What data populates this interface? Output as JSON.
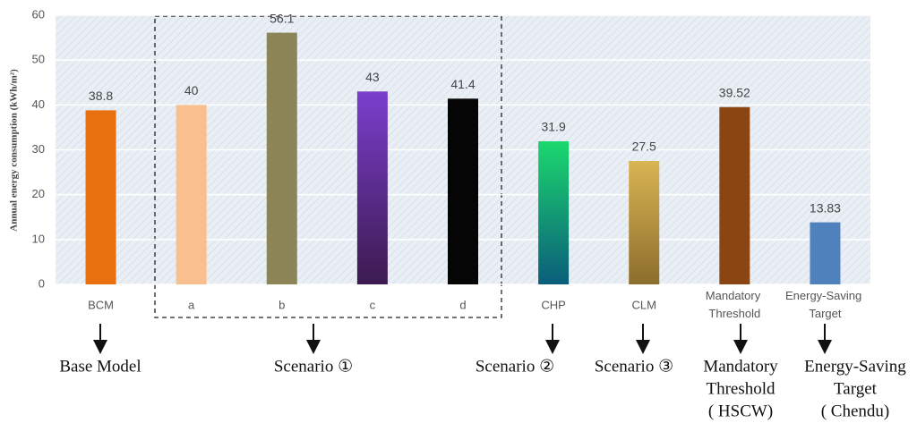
{
  "chart_data": {
    "type": "bar",
    "y_label": "Annual energy consumption (kWh/m²)",
    "categories": [
      "BCM",
      "a",
      "b",
      "c",
      "d",
      "CHP",
      "CLM",
      "Mandatory Threshold",
      "Energy-Saving Target"
    ],
    "values": [
      38.8,
      40,
      56.1,
      43,
      41.4,
      31.9,
      27.5,
      39.52,
      13.83
    ],
    "colors": [
      "#e8700f",
      "#f9bf8f",
      "#8b8558",
      [
        "#7b3fcc",
        "#3b1a50"
      ],
      "#050505",
      [
        "#1bd86e",
        "#0b5d7a"
      ],
      [
        "#d9b553",
        "#8c6d2c"
      ],
      "#8b4513",
      "#4f81bd"
    ],
    "ylim": [
      0,
      60
    ],
    "yticks": [
      0,
      10,
      20,
      30,
      40,
      50,
      60
    ],
    "grid": true,
    "annotations": [
      [
        "Base Model"
      ],
      [
        "Scenario ①"
      ],
      [
        "Scenario ②"
      ],
      [
        "Scenario ③"
      ],
      [
        "Mandatory",
        "Threshold",
        "( HSCW)"
      ],
      [
        "Energy-Saving",
        "Target",
        "( Chendu)"
      ]
    ]
  }
}
